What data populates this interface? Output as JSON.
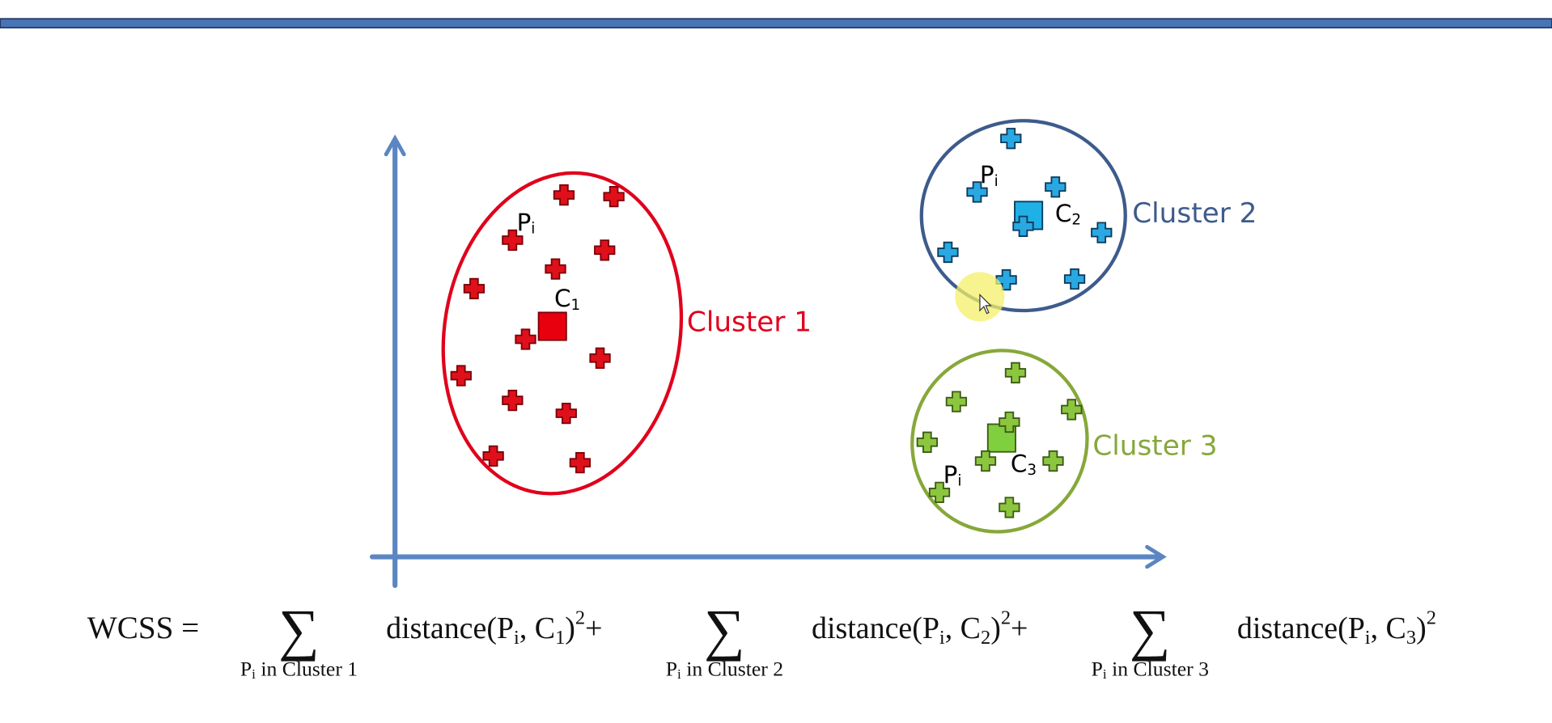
{
  "colors": {
    "axis": "#5b86c1",
    "topbar": "#4a74b8",
    "cluster1": "#e0001b",
    "cluster2": "#3d5b8c",
    "cluster3": "#86a83a",
    "point1": "#e0101a",
    "point2": "#2aa8e2",
    "point3": "#8cc63f"
  },
  "labels": {
    "cluster1": "Cluster 1",
    "cluster2": "Cluster 2",
    "cluster3": "Cluster 3",
    "point": "P",
    "point_sub": "i",
    "centroid": "C",
    "c1_sub": "1",
    "c2_sub": "2",
    "c3_sub": "3"
  },
  "chart_data": {
    "type": "scatter",
    "xlim": [
      0,
      100
    ],
    "ylim": [
      0,
      100
    ],
    "grid": false,
    "xlabel": "",
    "ylabel": "",
    "series": [
      {
        "cluster": "Cluster 1",
        "color": "#e0101a",
        "centroid": [
          20.5,
          55.1
        ],
        "points": [
          [
            22.0,
            86.5
          ],
          [
            28.5,
            86.1
          ],
          [
            15.3,
            75.7
          ],
          [
            27.3,
            73.3
          ],
          [
            20.9,
            68.8
          ],
          [
            10.3,
            64.1
          ],
          [
            17.0,
            52.0
          ],
          [
            26.7,
            47.5
          ],
          [
            8.6,
            43.3
          ],
          [
            15.3,
            37.4
          ],
          [
            22.3,
            34.3
          ],
          [
            12.8,
            24.1
          ],
          [
            24.1,
            22.5
          ]
        ]
      },
      {
        "cluster": "Cluster 2",
        "color": "#2aa8e2",
        "centroid": [
          82.5,
          81.6
        ],
        "points": [
          [
            80.2,
            100.0
          ],
          [
            75.8,
            87.2
          ],
          [
            86.0,
            88.4
          ],
          [
            81.8,
            79.0
          ],
          [
            92.0,
            77.5
          ],
          [
            72.0,
            72.8
          ],
          [
            79.6,
            66.2
          ],
          [
            88.5,
            66.4
          ]
        ]
      },
      {
        "cluster": "Cluster 3",
        "color": "#8cc63f",
        "centroid": [
          79.0,
          28.4
        ],
        "points": [
          [
            80.8,
            44.0
          ],
          [
            73.1,
            37.1
          ],
          [
            88.1,
            35.2
          ],
          [
            80.0,
            32.2
          ],
          [
            69.3,
            27.4
          ],
          [
            76.9,
            22.9
          ],
          [
            85.7,
            22.9
          ],
          [
            70.9,
            15.4
          ],
          [
            80.0,
            11.8
          ]
        ]
      }
    ]
  },
  "formula": {
    "lhs": "WCSS =",
    "sigma": "∑",
    "dist_open": "distance(P",
    "i": "i",
    "comma_c": ", C",
    "close": ")",
    "sq": "2",
    "plus": "+",
    "under_p": "P",
    "under_in": " in Cluster ",
    "terms": [
      {
        "c_index": "1",
        "cluster_num": "1"
      },
      {
        "c_index": "2",
        "cluster_num": "2"
      },
      {
        "c_index": "3",
        "cluster_num": "3"
      }
    ]
  }
}
